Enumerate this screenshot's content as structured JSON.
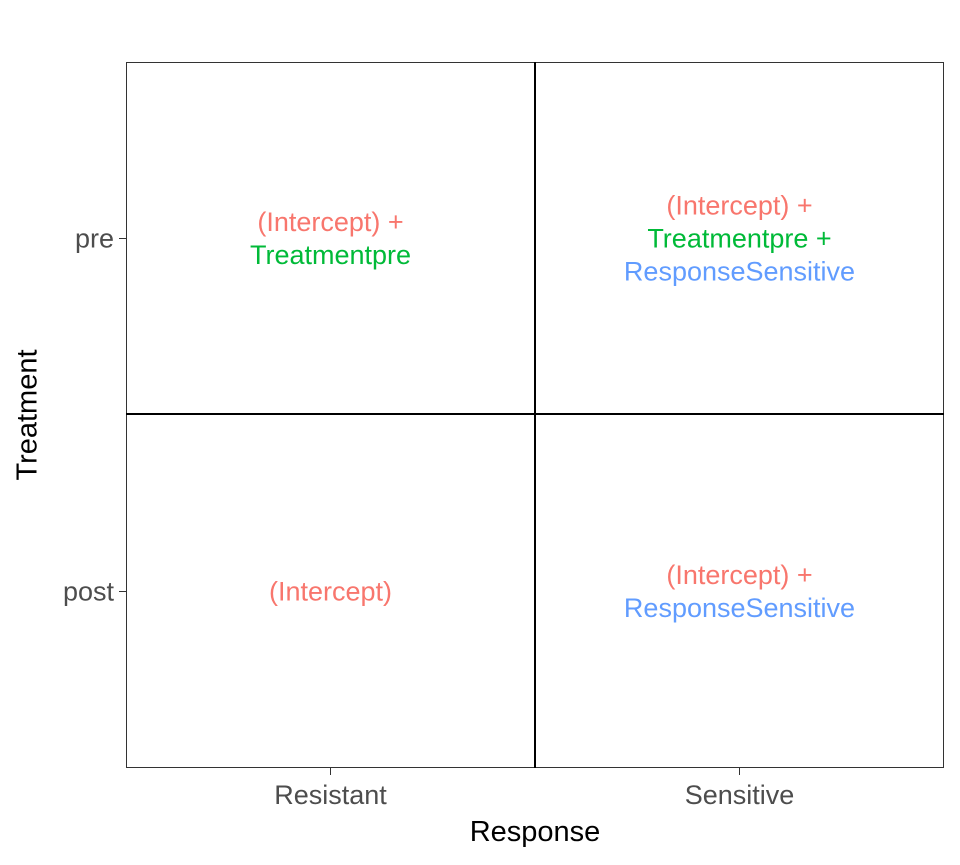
{
  "chart_data": {
    "type": "table",
    "xlabel": "Response",
    "ylabel": "Treatment",
    "x_categories": [
      "Resistant",
      "Sensitive"
    ],
    "y_categories": [
      "pre",
      "post"
    ],
    "colors": {
      "intercept": "#F8766D",
      "treatment": "#00BA38",
      "response": "#619CFF"
    },
    "cells": [
      {
        "x": "Resistant",
        "y": "pre",
        "lines": [
          {
            "text": "(Intercept) +",
            "term": "intercept"
          },
          {
            "text": "Treatmentpre",
            "term": "treatment"
          }
        ]
      },
      {
        "x": "Sensitive",
        "y": "pre",
        "lines": [
          {
            "text": "(Intercept) +",
            "term": "intercept"
          },
          {
            "text": "Treatmentpre +",
            "term": "treatment"
          },
          {
            "text": "ResponseSensitive",
            "term": "response"
          }
        ]
      },
      {
        "x": "Resistant",
        "y": "post",
        "lines": [
          {
            "text": "(Intercept)",
            "term": "intercept"
          }
        ]
      },
      {
        "x": "Sensitive",
        "y": "post",
        "lines": [
          {
            "text": "(Intercept) +",
            "term": "intercept"
          },
          {
            "text": "ResponseSensitive",
            "term": "response"
          }
        ]
      }
    ]
  }
}
